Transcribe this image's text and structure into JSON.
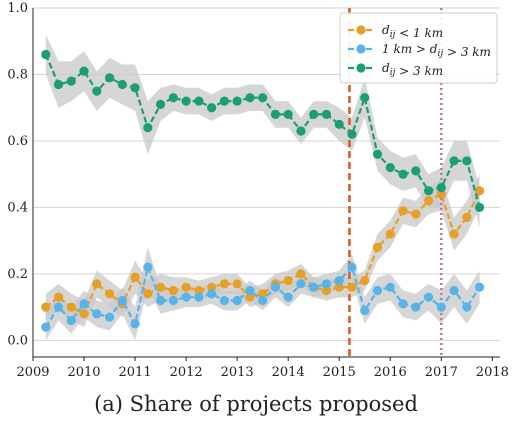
{
  "caption": "(a) Share of projects proposed",
  "chart_data": {
    "type": "line",
    "title": "",
    "xlabel": "",
    "ylabel": "",
    "xlim": [
      2009.0,
      2018.15
    ],
    "ylim": [
      -0.05,
      1.0
    ],
    "xticks": [
      2009,
      2010,
      2011,
      2012,
      2013,
      2014,
      2015,
      2016,
      2017,
      2018
    ],
    "xtick_labels": [
      "2009",
      "2010",
      "2011",
      "2012",
      "2013",
      "2014",
      "2015",
      "2016",
      "2017",
      "2018"
    ],
    "yticks": [
      0.0,
      0.2,
      0.4,
      0.6,
      0.8,
      1.0
    ],
    "ytick_labels": [
      "0.0",
      "0.2",
      "0.4",
      "0.6",
      "0.8",
      "1.0"
    ],
    "grid": "horizontal",
    "legend_position": "top-right",
    "x": [
      2009.25,
      2009.5,
      2009.75,
      2010.0,
      2010.25,
      2010.5,
      2010.75,
      2011.0,
      2011.25,
      2011.5,
      2011.75,
      2012.0,
      2012.25,
      2012.5,
      2012.75,
      2013.0,
      2013.25,
      2013.5,
      2013.75,
      2014.0,
      2014.25,
      2014.5,
      2014.75,
      2015.0,
      2015.25,
      2015.5,
      2015.75,
      2016.0,
      2016.25,
      2016.5,
      2016.75,
      2017.0,
      2017.25,
      2017.5,
      2017.75
    ],
    "series": [
      {
        "name": "d_ij < 1 km",
        "color": "#e69f27",
        "values": [
          0.1,
          0.13,
          0.1,
          0.08,
          0.17,
          0.14,
          0.11,
          0.19,
          0.14,
          0.16,
          0.15,
          0.16,
          0.15,
          0.16,
          0.17,
          0.17,
          0.13,
          0.14,
          0.17,
          0.18,
          0.2,
          0.16,
          0.15,
          0.16,
          0.16,
          0.18,
          0.28,
          0.32,
          0.39,
          0.38,
          0.42,
          0.44,
          0.32,
          0.37,
          0.45
        ],
        "band": [
          0.04,
          0.04,
          0.04,
          0.04,
          0.04,
          0.04,
          0.04,
          0.05,
          0.04,
          0.04,
          0.04,
          0.03,
          0.03,
          0.03,
          0.03,
          0.03,
          0.03,
          0.03,
          0.03,
          0.03,
          0.03,
          0.03,
          0.03,
          0.03,
          0.03,
          0.03,
          0.04,
          0.04,
          0.04,
          0.04,
          0.04,
          0.05,
          0.05,
          0.05,
          0.05
        ]
      },
      {
        "name": "1 km > d_ij > 3 km",
        "color": "#56b4e9",
        "values": [
          0.04,
          0.1,
          0.06,
          0.11,
          0.08,
          0.07,
          0.12,
          0.05,
          0.22,
          0.12,
          0.12,
          0.13,
          0.13,
          0.14,
          0.12,
          0.12,
          0.15,
          0.12,
          0.16,
          0.13,
          0.17,
          0.16,
          0.17,
          0.18,
          0.22,
          0.09,
          0.15,
          0.16,
          0.11,
          0.1,
          0.13,
          0.1,
          0.15,
          0.1,
          0.16
        ],
        "band": [
          0.04,
          0.04,
          0.04,
          0.04,
          0.04,
          0.04,
          0.04,
          0.05,
          0.06,
          0.04,
          0.03,
          0.03,
          0.03,
          0.03,
          0.03,
          0.03,
          0.03,
          0.03,
          0.03,
          0.03,
          0.03,
          0.03,
          0.03,
          0.03,
          0.04,
          0.04,
          0.04,
          0.04,
          0.04,
          0.04,
          0.04,
          0.05,
          0.05,
          0.05,
          0.05
        ]
      },
      {
        "name": "d_ij > 3 km",
        "color": "#1b9e77",
        "values": [
          0.86,
          0.77,
          0.78,
          0.81,
          0.75,
          0.79,
          0.77,
          0.76,
          0.64,
          0.71,
          0.73,
          0.72,
          0.72,
          0.7,
          0.72,
          0.72,
          0.73,
          0.73,
          0.68,
          0.68,
          0.63,
          0.68,
          0.68,
          0.65,
          0.62,
          0.73,
          0.56,
          0.52,
          0.5,
          0.51,
          0.45,
          0.46,
          0.54,
          0.54,
          0.4
        ],
        "band": [
          0.06,
          0.07,
          0.06,
          0.06,
          0.06,
          0.06,
          0.06,
          0.07,
          0.08,
          0.05,
          0.04,
          0.04,
          0.04,
          0.04,
          0.04,
          0.04,
          0.04,
          0.04,
          0.04,
          0.04,
          0.04,
          0.04,
          0.04,
          0.05,
          0.05,
          0.06,
          0.05,
          0.05,
          0.05,
          0.05,
          0.05,
          0.06,
          0.06,
          0.06,
          0.06
        ]
      }
    ],
    "vlines": [
      {
        "x": 2015.2,
        "color": "#d95f27",
        "style": "dashed"
      },
      {
        "x": 2017.0,
        "color": "#c07aa8",
        "style": "dotted"
      }
    ]
  }
}
